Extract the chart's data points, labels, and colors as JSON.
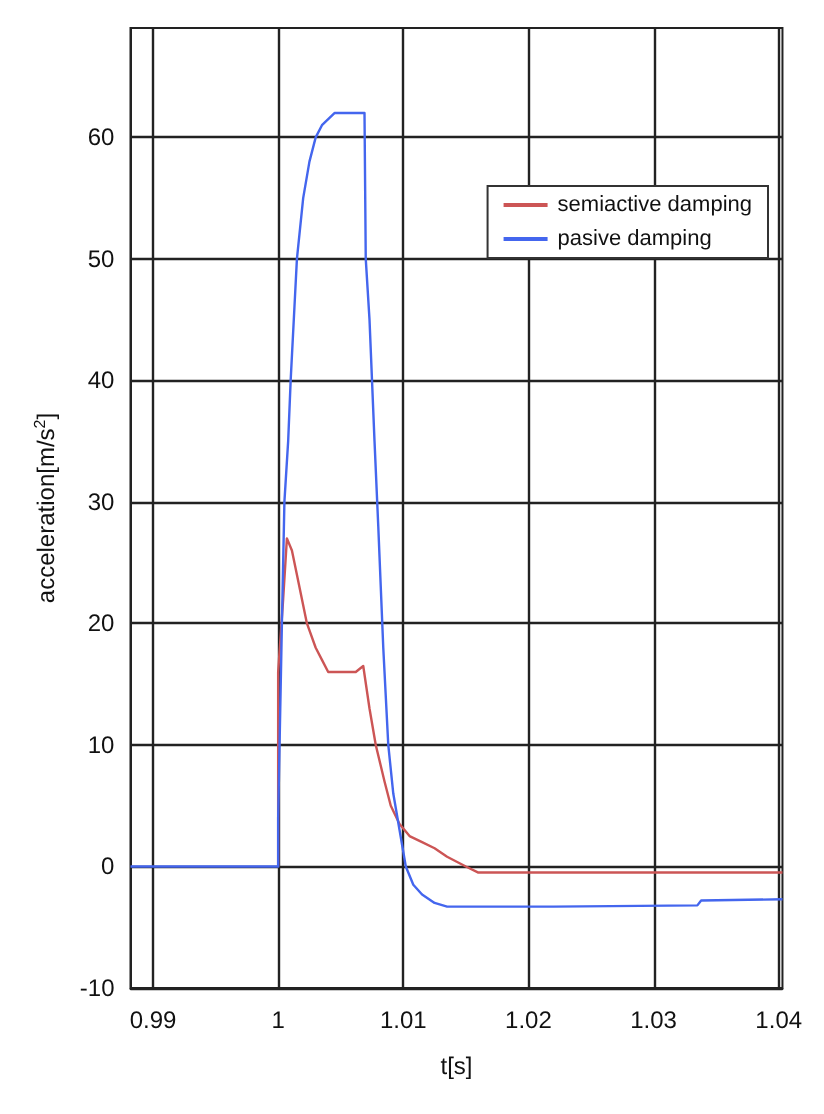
{
  "chart_data": {
    "type": "line",
    "xlabel": "t[s]",
    "ylabel": "acceleration[m/s$^{2}$]",
    "xlim": [
      0.9882,
      1.0403
    ],
    "ylim": [
      -10,
      69
    ],
    "xticks": [
      0.99,
      1,
      1.01,
      1.02,
      1.03,
      1.04
    ],
    "yticks": [
      -10,
      0,
      10,
      20,
      30,
      40,
      50,
      60
    ],
    "grid": true,
    "legend": "top right",
    "line_style": "solid",
    "marker": "none",
    "series": [
      {
        "name": "semiactive damping",
        "color": "#cc5555",
        "x": [
          1.0,
          1.0,
          1.0004,
          1.0007,
          1.0011,
          1.0015,
          1.0023,
          1.003,
          1.0035,
          1.004,
          1.0062,
          1.0068,
          1.0073,
          1.0078,
          1.0085,
          1.009,
          1.0097,
          1.0105,
          1.0115,
          1.0125,
          1.0135,
          1.015,
          1.016,
          1.0403
        ],
        "values": [
          0,
          16,
          22,
          27,
          26,
          24,
          20,
          18,
          17,
          16,
          16,
          16.5,
          13,
          10,
          7,
          5,
          3.5,
          2.5,
          2,
          1.5,
          0.8,
          0,
          -0.5,
          -0.5
        ]
      },
      {
        "name": "pasive damping",
        "color": "#4466ee",
        "x": [
          0.9882,
          1.0,
          1.0,
          1.0003,
          1.0005,
          1.0008,
          1.001,
          1.0013,
          1.0015,
          1.002,
          1.0025,
          1.003,
          1.0035,
          1.004,
          1.0045,
          1.0069,
          1.007,
          1.0073,
          1.0077,
          1.008,
          1.0084,
          1.0088,
          1.0092,
          1.0097,
          1.0102,
          1.0108,
          1.0115,
          1.0125,
          1.0135,
          1.0145,
          1.022,
          1.0335,
          1.0338,
          1.0403
        ],
        "values": [
          0,
          0,
          4,
          20,
          30,
          35,
          40,
          46,
          50,
          55,
          58,
          60,
          61,
          61.5,
          62,
          62,
          50,
          45,
          35,
          28,
          18,
          10,
          6,
          3,
          0,
          -1.5,
          -2.3,
          -3,
          -3.3,
          -3.3,
          -3.3,
          -3.2,
          -2.8,
          -2.7
        ]
      }
    ]
  }
}
